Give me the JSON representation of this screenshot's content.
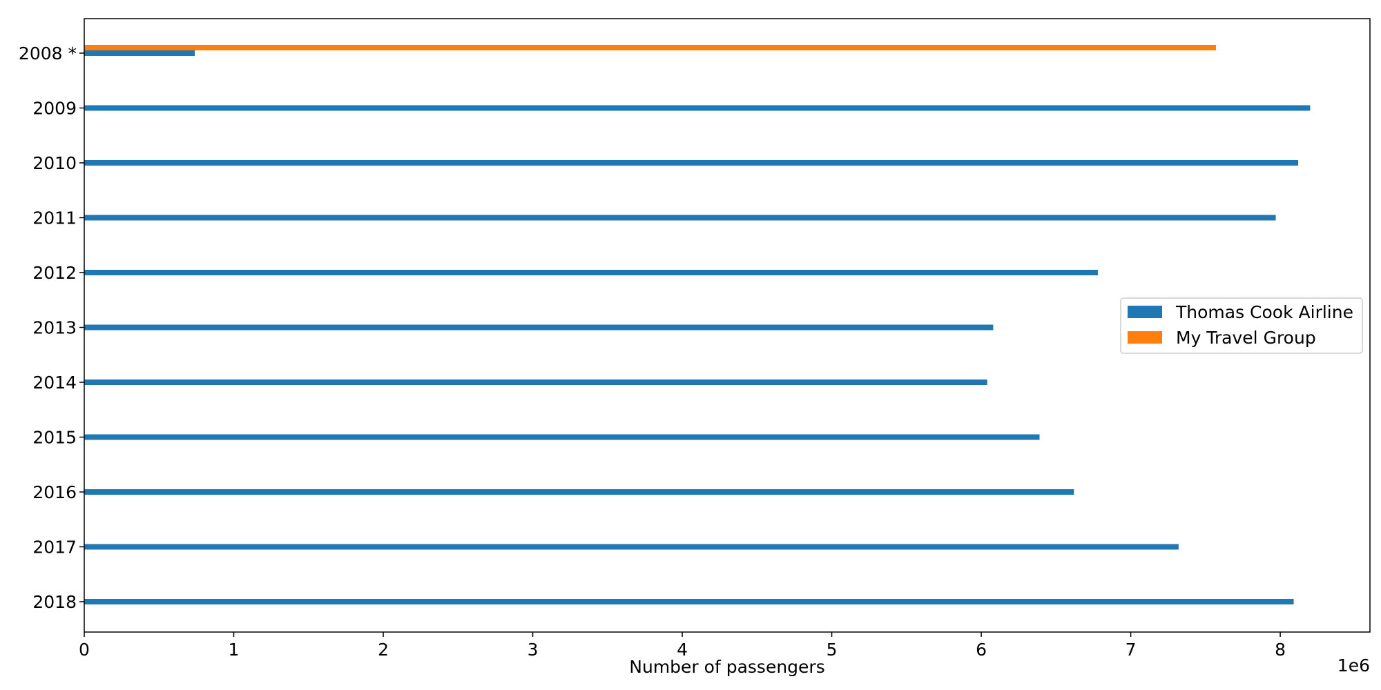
{
  "chart_data": {
    "type": "bar",
    "orientation": "horizontal",
    "categories": [
      "2008 *",
      "2009",
      "2010",
      "2011",
      "2012",
      "2013",
      "2014",
      "2015",
      "2016",
      "2017",
      "2018"
    ],
    "series": [
      {
        "name": "Thomas Cook Airline",
        "color": "#1f77b4",
        "values": [
          740000,
          8200000,
          8120000,
          7970000,
          6780000,
          6080000,
          6040000,
          6390000,
          6620000,
          7320000,
          8090000
        ]
      },
      {
        "name": "My Travel Group",
        "color": "#ff7f0e",
        "values": [
          7570000,
          null,
          null,
          null,
          null,
          null,
          null,
          null,
          null,
          null,
          null
        ]
      }
    ],
    "xlabel": "Number of passengers",
    "x_offset_label": "1e6",
    "x_ticks": [
      0,
      1000000,
      2000000,
      3000000,
      4000000,
      5000000,
      6000000,
      7000000,
      8000000
    ],
    "x_tick_labels": [
      "0",
      "1",
      "2",
      "3",
      "4",
      "5",
      "6",
      "7",
      "8"
    ],
    "xlim": [
      0,
      8600000
    ],
    "legend_position": "center-right",
    "grid": false
  }
}
